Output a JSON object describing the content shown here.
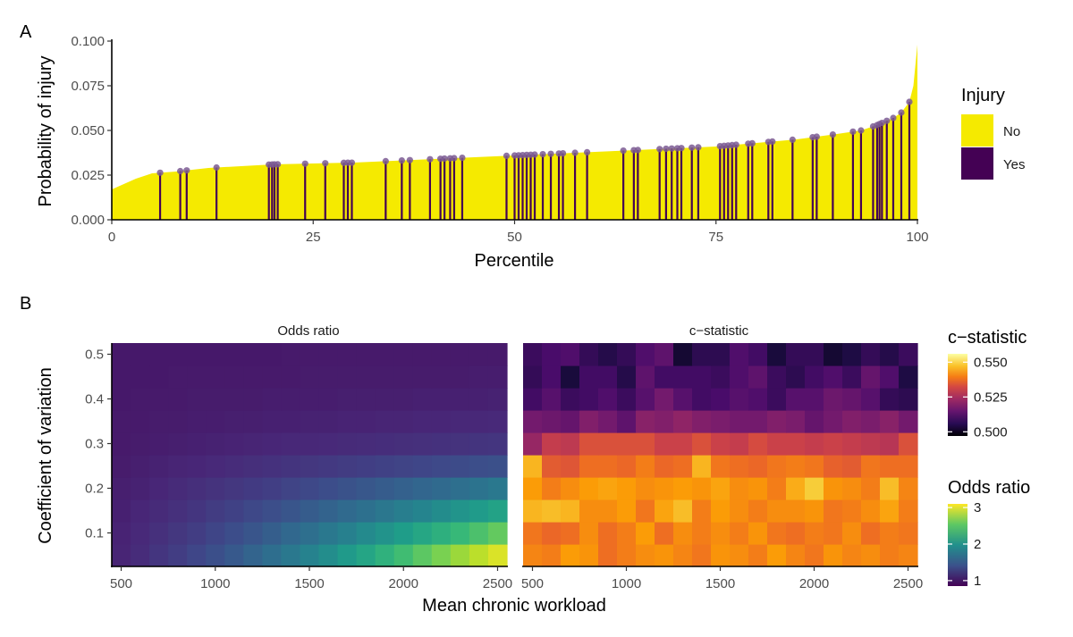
{
  "chart_data": [
    {
      "panel": "A",
      "type": "area",
      "xlabel": "Percentile",
      "ylabel": "Probability of injury",
      "xlim": [
        0,
        100
      ],
      "ylim": [
        0,
        0.1
      ],
      "x_ticks": [
        "0",
        "25",
        "50",
        "75",
        "100"
      ],
      "y_ticks": [
        "0.000",
        "0.025",
        "0.050",
        "0.075",
        "0.100"
      ],
      "grid": false,
      "legend": {
        "title": "Injury",
        "position": "right",
        "entries": [
          {
            "label": "No",
            "color": "#f5ea00"
          },
          {
            "label": "Yes",
            "color": "#440154"
          }
        ]
      },
      "series": [
        {
          "role": "area",
          "x": [
            0,
            1,
            3,
            5,
            8,
            12,
            20,
            30,
            40,
            50,
            60,
            70,
            75,
            80,
            85,
            90,
            93,
            95,
            97,
            98,
            99,
            99.5,
            100
          ],
          "y": [
            0.017,
            0.019,
            0.023,
            0.026,
            0.027,
            0.029,
            0.031,
            0.032,
            0.034,
            0.036,
            0.038,
            0.04,
            0.041,
            0.043,
            0.045,
            0.048,
            0.05,
            0.053,
            0.057,
            0.06,
            0.066,
            0.075,
            0.098
          ]
        },
        {
          "role": "injury_lollipops",
          "name": "Yes",
          "x": [
            6,
            8.5,
            9.3,
            13,
            19.5,
            19.9,
            20.2,
            20.6,
            24,
            26.5,
            28.8,
            29.3,
            29.8,
            34,
            36,
            37,
            39.5,
            40.8,
            41.3,
            42,
            42.5,
            43.5,
            49,
            50,
            50.5,
            51,
            51.5,
            52,
            52.5,
            53.5,
            54.5,
            55.5,
            56,
            57.5,
            59,
            63.5,
            64.8,
            65.3,
            68,
            68.8,
            69.5,
            70.2,
            70.7,
            72,
            72.8,
            75.5,
            76,
            76.5,
            77,
            77.5,
            79,
            79.5,
            81.5,
            82,
            84.5,
            87,
            87.5,
            89.5,
            92,
            93,
            94.5,
            95,
            95.3,
            95.6,
            96.2,
            97,
            98,
            99
          ]
        }
      ]
    },
    {
      "panel": "B",
      "type": "heatmap",
      "facets": [
        "Odds ratio",
        "c−statistic"
      ],
      "xlabel": "Mean chronic workload",
      "ylabel": "Coefficient of variation",
      "xlim": [
        450,
        2550
      ],
      "ylim": [
        0.025,
        0.525
      ],
      "x_ticks": [
        "500",
        "1000",
        "1500",
        "2000",
        "2500"
      ],
      "y_ticks": [
        "0.1",
        "0.2",
        "0.3",
        "0.4",
        "0.5"
      ],
      "x_centers": [
        500,
        600,
        700,
        800,
        900,
        1000,
        1100,
        1200,
        1300,
        1400,
        1500,
        1600,
        1700,
        1800,
        1900,
        2000,
        2100,
        2200,
        2300,
        2400,
        2500
      ],
      "y_centers": [
        0.05,
        0.1,
        0.15,
        0.2,
        0.25,
        0.3,
        0.35,
        0.4,
        0.45,
        0.5
      ],
      "odds_ratio": {
        "legend": {
          "title": "Odds ratio",
          "ticks": [
            1,
            2,
            3
          ],
          "range": [
            0.85,
            3.1
          ]
        },
        "rows": [
          [
            1.08,
            1.13,
            1.2,
            1.26,
            1.33,
            1.4,
            1.48,
            1.57,
            1.66,
            1.75,
            1.85,
            1.95,
            2.06,
            2.17,
            2.29,
            2.4,
            2.52,
            2.64,
            2.76,
            2.87,
            2.98
          ],
          [
            1.07,
            1.11,
            1.16,
            1.21,
            1.26,
            1.32,
            1.38,
            1.45,
            1.52,
            1.6,
            1.67,
            1.75,
            1.83,
            1.92,
            2.0,
            2.09,
            2.18,
            2.27,
            2.36,
            2.45,
            2.55
          ],
          [
            1.05,
            1.09,
            1.12,
            1.16,
            1.2,
            1.25,
            1.29,
            1.34,
            1.39,
            1.45,
            1.5,
            1.56,
            1.62,
            1.68,
            1.74,
            1.81,
            1.87,
            1.94,
            2.01,
            2.07,
            2.14
          ],
          [
            1.04,
            1.06,
            1.09,
            1.12,
            1.15,
            1.18,
            1.21,
            1.24,
            1.27,
            1.31,
            1.34,
            1.38,
            1.42,
            1.46,
            1.5,
            1.54,
            1.58,
            1.62,
            1.67,
            1.71,
            1.75
          ],
          [
            1.02,
            1.04,
            1.06,
            1.08,
            1.09,
            1.11,
            1.13,
            1.15,
            1.17,
            1.19,
            1.21,
            1.23,
            1.25,
            1.27,
            1.29,
            1.31,
            1.33,
            1.35,
            1.37,
            1.39,
            1.41
          ],
          [
            1.01,
            1.02,
            1.03,
            1.04,
            1.05,
            1.06,
            1.07,
            1.08,
            1.09,
            1.1,
            1.1,
            1.11,
            1.12,
            1.13,
            1.14,
            1.15,
            1.16,
            1.17,
            1.18,
            1.19,
            1.2
          ],
          [
            1.01,
            1.01,
            1.02,
            1.02,
            1.03,
            1.03,
            1.04,
            1.04,
            1.05,
            1.05,
            1.06,
            1.06,
            1.07,
            1.07,
            1.08,
            1.08,
            1.09,
            1.09,
            1.1,
            1.1,
            1.11
          ],
          [
            1.0,
            1.01,
            1.01,
            1.01,
            1.02,
            1.02,
            1.02,
            1.02,
            1.03,
            1.03,
            1.03,
            1.03,
            1.04,
            1.04,
            1.04,
            1.04,
            1.05,
            1.05,
            1.05,
            1.05,
            1.06
          ],
          [
            1.0,
            1.0,
            1.0,
            1.01,
            1.01,
            1.01,
            1.01,
            1.01,
            1.01,
            1.01,
            1.02,
            1.02,
            1.02,
            1.02,
            1.02,
            1.02,
            1.02,
            1.02,
            1.02,
            1.03,
            1.03
          ],
          [
            1.0,
            1.0,
            1.0,
            1.0,
            1.0,
            1.0,
            1.0,
            1.0,
            1.0,
            1.01,
            1.01,
            1.01,
            1.01,
            1.01,
            1.01,
            1.01,
            1.01,
            1.01,
            1.01,
            1.01,
            1.01
          ]
        ]
      },
      "c_statistic": {
        "legend": {
          "title": "c−statistic",
          "ticks": [
            0.5,
            0.525,
            0.55
          ],
          "labels": [
            "0.500",
            "0.525",
            "0.550"
          ],
          "range": [
            0.497,
            0.556
          ]
        },
        "rows": [
          [
            0.54,
            0.539,
            0.543,
            0.542,
            0.537,
            0.539,
            0.541,
            0.542,
            0.54,
            0.538,
            0.542,
            0.541,
            0.539,
            0.543,
            0.54,
            0.538,
            0.542,
            0.54,
            0.541,
            0.539,
            0.54
          ],
          [
            0.538,
            0.536,
            0.537,
            0.541,
            0.537,
            0.539,
            0.543,
            0.537,
            0.541,
            0.539,
            0.541,
            0.539,
            0.542,
            0.538,
            0.537,
            0.539,
            0.538,
            0.541,
            0.537,
            0.539,
            0.538
          ],
          [
            0.546,
            0.547,
            0.546,
            0.541,
            0.541,
            0.543,
            0.538,
            0.544,
            0.547,
            0.539,
            0.543,
            0.541,
            0.539,
            0.541,
            0.541,
            0.542,
            0.538,
            0.539,
            0.541,
            0.544,
            0.539
          ],
          [
            0.543,
            0.539,
            0.541,
            0.543,
            0.544,
            0.543,
            0.541,
            0.542,
            0.543,
            0.542,
            0.544,
            0.541,
            0.542,
            0.539,
            0.545,
            0.549,
            0.542,
            0.541,
            0.539,
            0.547,
            0.54
          ],
          [
            0.546,
            0.534,
            0.533,
            0.537,
            0.537,
            0.536,
            0.539,
            0.536,
            0.537,
            0.546,
            0.538,
            0.537,
            0.536,
            0.538,
            0.539,
            0.538,
            0.535,
            0.534,
            0.538,
            0.537,
            0.537
          ],
          [
            0.521,
            0.528,
            0.527,
            0.532,
            0.532,
            0.532,
            0.532,
            0.529,
            0.529,
            0.532,
            0.529,
            0.528,
            0.531,
            0.529,
            0.529,
            0.528,
            0.529,
            0.528,
            0.527,
            0.526,
            0.532
          ],
          [
            0.516,
            0.515,
            0.514,
            0.518,
            0.516,
            0.513,
            0.519,
            0.518,
            0.52,
            0.518,
            0.517,
            0.516,
            0.516,
            0.518,
            0.517,
            0.514,
            0.516,
            0.518,
            0.517,
            0.519,
            0.516
          ],
          [
            0.509,
            0.512,
            0.508,
            0.509,
            0.511,
            0.508,
            0.512,
            0.516,
            0.512,
            0.509,
            0.51,
            0.512,
            0.511,
            0.508,
            0.512,
            0.512,
            0.515,
            0.514,
            0.512,
            0.507,
            0.506
          ],
          [
            0.507,
            0.51,
            0.503,
            0.509,
            0.509,
            0.505,
            0.513,
            0.509,
            0.509,
            0.509,
            0.508,
            0.511,
            0.513,
            0.508,
            0.506,
            0.509,
            0.511,
            0.508,
            0.514,
            0.511,
            0.504
          ],
          [
            0.508,
            0.51,
            0.511,
            0.507,
            0.505,
            0.507,
            0.511,
            0.513,
            0.502,
            0.506,
            0.506,
            0.511,
            0.509,
            0.503,
            0.507,
            0.507,
            0.502,
            0.504,
            0.507,
            0.505,
            0.508
          ]
        ]
      }
    }
  ],
  "labels": {
    "panel_a": "A",
    "panel_b": "B",
    "a_ylabel": "Probability of injury",
    "a_xlabel": "Percentile",
    "b_ylabel": "Coefficient of variation",
    "b_xlabel": "Mean chronic workload",
    "facet_left": "Odds ratio",
    "facet_right": "c−statistic",
    "legend_injury_title": "Injury",
    "legend_no": "No",
    "legend_yes": "Yes",
    "legend_c_title": "c−statistic",
    "legend_or_title": "Odds ratio"
  },
  "colors": {
    "area_fill": "#f5ea00",
    "injury_line": "#440154",
    "injury_point": "#7b5a93",
    "strip_bg": "#ffffff"
  }
}
